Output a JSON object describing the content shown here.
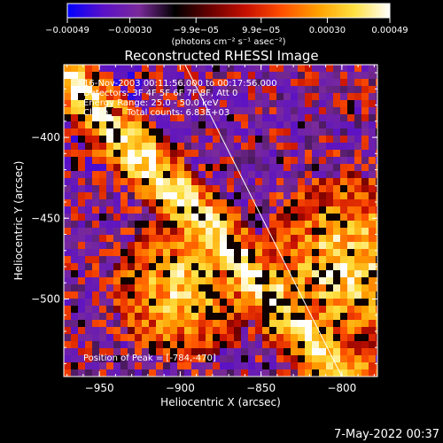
{
  "chart_data": {
    "type": "heatmap",
    "title": "Reconstructed RHESSI Image",
    "xlabel": "Heliocentric X (arcsec)",
    "ylabel": "Heliocentric Y (arcsec)",
    "xlim": [
      -972,
      -778
    ],
    "ylim": [
      -548,
      -355
    ],
    "x_ticks": [
      -950,
      -900,
      -850,
      -800
    ],
    "x_tick_labels": [
      "−950",
      "−900",
      "−850",
      "−800"
    ],
    "y_ticks": [
      -400,
      -450,
      -500
    ],
    "y_tick_labels": [
      "−400",
      "−450",
      "−500"
    ],
    "colorbar": {
      "min": -0.00049,
      "max": 0.00049,
      "tick_values": [
        -0.00049,
        -0.0003,
        -9.9e-05,
        9.9e-05,
        0.0003,
        0.00049
      ],
      "tick_labels": [
        "−0.00049",
        "−0.00030",
        "−9.9e−05",
        "9.9e−05",
        "0.00030",
        "0.00049"
      ],
      "unit_label": "(photons cm⁻² s⁻¹ asec⁻²)",
      "colors": [
        "#0000ff",
        "#5a10c8",
        "#7a2a9a",
        "#000000",
        "#6a0000",
        "#c81000",
        "#ff5000",
        "#ffa000",
        "#ffe040",
        "#ffffff"
      ]
    },
    "annotations": {
      "time_range": "16-Nov-2003 00:11:56.000 to 00:17:56.000",
      "detectors": "Detectors: 3F 4F 5F 6F 7F 8F, Att 0",
      "energy_range": "Energy Range: 25.0 - 50.0 keV",
      "clean": "Clean",
      "total_counts": "Total counts: 6.83E+03",
      "peak": "Position of Peak = [-784,-470]"
    },
    "peak_position": [
      -784,
      -470
    ],
    "limb_line": [
      [
        -897,
        -355
      ],
      [
        -800,
        -548
      ]
    ],
    "grid": false
  },
  "footer": {
    "timestamp": "7-May-2022 00:37"
  },
  "colors": {
    "background": "#000000",
    "foreground": "#ffffff"
  }
}
